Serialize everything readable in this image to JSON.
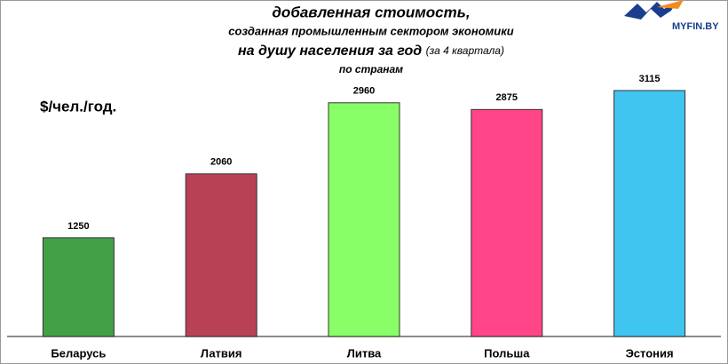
{
  "chart_data": {
    "type": "bar",
    "title_lines": [
      "добавленная стоимость,",
      "созданная промышленным сектором экономики",
      "на душу населения за год",
      "(за 4 квартала)",
      "по странам"
    ],
    "y_label": "$/чел./год.",
    "categories": [
      "Беларусь",
      "Латвия",
      "Литва",
      "Польша",
      "Эстония"
    ],
    "values": [
      1250,
      2060,
      2960,
      2875,
      3115
    ],
    "colors": [
      "#43a047",
      "#b94155",
      "#88ff66",
      "#ff4488",
      "#40c4f0"
    ]
  },
  "logo": "MYFIN.BY"
}
